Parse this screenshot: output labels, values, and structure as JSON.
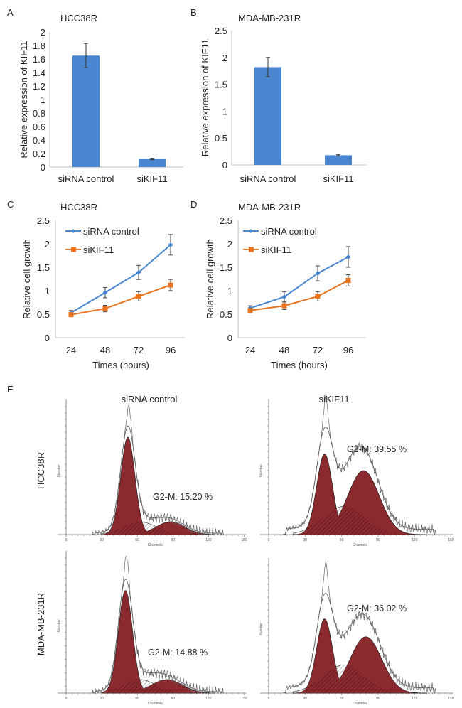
{
  "panels": {
    "a": "A",
    "b": "B",
    "c": "C",
    "d": "D",
    "e": "E"
  },
  "colors": {
    "blue": "#4a86cf",
    "orange": "#e8731f",
    "axis": "#bfbfbf",
    "peak": "#8b2a2e",
    "error": "#333333"
  },
  "chart_data": [
    {
      "id": "A",
      "type": "bar",
      "title": "HCC38R",
      "ylabel": "Relative expression of KIF11",
      "xlabel": "",
      "categories": [
        "siRNA control",
        "siKIF11"
      ],
      "values": [
        1.65,
        0.12
      ],
      "errors": [
        0.18,
        0.01
      ],
      "ylim": [
        0,
        2
      ],
      "yticks": [
        "0",
        "0.2",
        "0.4",
        "0.6",
        "0.8",
        "1",
        "1.2",
        "1.4",
        "1.6",
        "1.8",
        "2"
      ],
      "grid": false
    },
    {
      "id": "B",
      "type": "bar",
      "title": "MDA-MB-231R",
      "ylabel": "Relative expression of KIF11",
      "xlabel": "",
      "categories": [
        "siRNA control",
        "siKIF11"
      ],
      "values": [
        1.82,
        0.18
      ],
      "errors": [
        0.18,
        0.01
      ],
      "ylim": [
        0,
        2.5
      ],
      "yticks": [
        "0",
        "0.5",
        "1",
        "1.5",
        "2",
        "2.5"
      ],
      "grid": false
    },
    {
      "id": "C",
      "type": "line",
      "title": "HCC38R",
      "ylabel": "Relative cell growth",
      "xlabel": "Times (hours)",
      "x": [
        "24",
        "48",
        "72",
        "96"
      ],
      "ylim": [
        0,
        2.5
      ],
      "yticks": [
        "0",
        "0.5",
        "1",
        "1.5",
        "2",
        "2.5"
      ],
      "legend": "top-left",
      "series": [
        {
          "name": "siRNA control",
          "values": [
            0.53,
            0.96,
            1.39,
            1.98
          ],
          "errors": [
            0.05,
            0.11,
            0.15,
            0.22
          ]
        },
        {
          "name": "siKIF11",
          "values": [
            0.49,
            0.62,
            0.88,
            1.12
          ],
          "errors": [
            0.04,
            0.07,
            0.1,
            0.12
          ]
        }
      ]
    },
    {
      "id": "D",
      "type": "line",
      "title": "MDA-MB-231R",
      "ylabel": "Relative cell growth",
      "xlabel": "Times (hours)",
      "x": [
        "24",
        "48",
        "72",
        "96"
      ],
      "ylim": [
        0,
        2.5
      ],
      "yticks": [
        "0",
        "0.5",
        "1",
        "1.5",
        "2",
        "2.5"
      ],
      "legend": "top-left",
      "series": [
        {
          "name": "siRNA control",
          "values": [
            0.63,
            0.87,
            1.37,
            1.72
          ],
          "errors": [
            0.05,
            0.11,
            0.16,
            0.22
          ]
        },
        {
          "name": "siKIF11",
          "values": [
            0.58,
            0.68,
            0.88,
            1.22
          ],
          "errors": [
            0.05,
            0.08,
            0.1,
            0.12
          ]
        }
      ]
    },
    {
      "id": "E",
      "type": "area",
      "columns": [
        "siRNA control",
        "siKIF11"
      ],
      "rows": [
        "HCC38R",
        "MDA-MB-231R"
      ],
      "xlabel": "Channels",
      "ylabel": "Number",
      "xticks": [
        "0",
        "30",
        "60",
        "90",
        "120",
        "150"
      ],
      "g2m": [
        {
          "row": "HCC38R",
          "column": "siRNA control",
          "label": "G2-M: 15.20 %",
          "value": 15.2
        },
        {
          "row": "HCC38R",
          "column": "siKIF11",
          "label": "G2-M: 39.55 %",
          "value": 39.55
        },
        {
          "row": "MDA-MB-231R",
          "column": "siRNA control",
          "label": "G2-M: 14.88 %",
          "value": 14.88
        },
        {
          "row": "MDA-MB-231R",
          "column": "siKIF11",
          "label": "G2-M: 36.02 %",
          "value": 36.02
        }
      ]
    }
  ]
}
